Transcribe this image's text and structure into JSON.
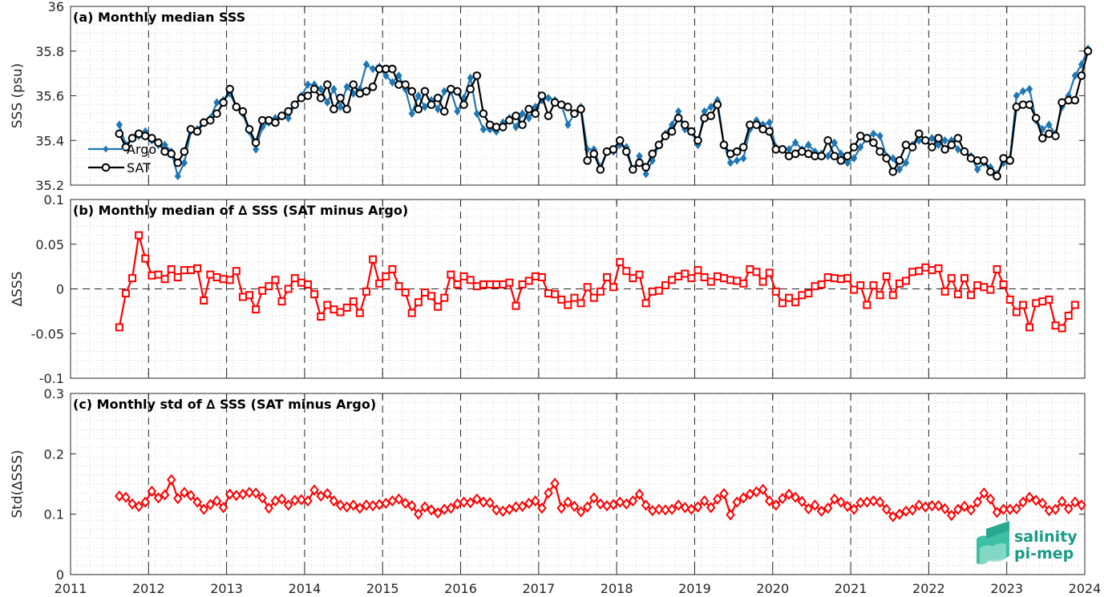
{
  "chart_data": [
    {
      "type": "line",
      "title": "(a) Monthly median SSS",
      "ylabel": "SSS (psu)",
      "xlim": [
        2011,
        2024
      ],
      "ylim": [
        35.2,
        36
      ],
      "yticks": [
        "35.2",
        "35.4",
        "35.6",
        "35.8",
        "36"
      ],
      "grid": true,
      "legend_position": "left",
      "x_start": 2011.625,
      "x_step_months": 1,
      "series": [
        {
          "name": "Argo",
          "color": "#1f77b4",
          "marker": "diamond",
          "values": [
            35.47,
            35.38,
            35.41,
            35.42,
            35.44,
            35.4,
            35.38,
            35.38,
            35.35,
            35.24,
            35.3,
            35.44,
            35.45,
            35.48,
            35.5,
            35.57,
            35.58,
            35.61,
            35.55,
            35.52,
            35.44,
            35.36,
            35.46,
            35.48,
            35.5,
            35.51,
            35.5,
            35.56,
            35.6,
            35.65,
            35.65,
            35.63,
            35.57,
            35.63,
            35.55,
            35.64,
            35.61,
            35.63,
            35.74,
            35.72,
            35.73,
            35.69,
            35.66,
            35.69,
            35.63,
            35.52,
            35.6,
            35.55,
            35.58,
            35.54,
            35.62,
            35.62,
            35.53,
            35.59,
            35.68,
            35.52,
            35.45,
            35.45,
            35.44,
            35.48,
            35.5,
            35.46,
            35.52,
            35.5,
            35.55,
            35.58,
            35.59,
            35.58,
            35.56,
            35.47,
            35.52,
            35.55,
            35.36,
            35.36,
            35.28,
            35.35,
            35.35,
            35.38,
            35.37,
            35.27,
            35.33,
            35.25,
            35.31,
            35.38,
            35.43,
            35.47,
            35.53,
            35.45,
            35.44,
            35.38,
            35.53,
            35.55,
            35.58,
            35.38,
            35.3,
            35.31,
            35.32,
            35.45,
            35.49,
            35.47,
            35.48,
            35.37,
            35.36,
            35.36,
            35.39,
            35.36,
            35.38,
            35.35,
            35.34,
            35.33,
            35.39,
            35.34,
            35.3,
            35.32,
            35.37,
            35.41,
            35.43,
            35.42,
            35.33,
            35.32,
            35.27,
            35.3,
            35.38,
            35.4,
            35.4,
            35.41,
            35.38,
            35.4,
            35.4,
            35.36,
            35.35,
            35.33,
            35.27,
            35.3,
            35.28,
            35.25,
            35.3,
            35.32,
            35.6,
            35.62,
            35.63,
            35.49,
            35.45,
            35.47,
            35.43,
            35.55,
            35.6,
            35.69,
            35.74,
            35.81
          ]
        },
        {
          "name": "SAT",
          "color": "#000000",
          "marker": "circle",
          "values": [
            35.43,
            35.37,
            35.41,
            35.43,
            35.42,
            35.41,
            35.39,
            35.35,
            35.34,
            35.3,
            35.35,
            35.45,
            35.44,
            35.48,
            35.49,
            35.52,
            35.57,
            35.63,
            35.55,
            35.53,
            35.45,
            35.39,
            35.49,
            35.49,
            35.48,
            35.51,
            35.53,
            35.56,
            35.59,
            35.6,
            35.63,
            35.59,
            35.65,
            35.54,
            35.59,
            35.54,
            35.65,
            35.61,
            35.62,
            35.64,
            35.72,
            35.72,
            35.72,
            35.65,
            35.65,
            35.62,
            35.54,
            35.62,
            35.56,
            35.59,
            35.53,
            35.63,
            35.62,
            35.56,
            35.63,
            35.69,
            35.52,
            35.47,
            35.46,
            35.46,
            35.49,
            35.51,
            35.47,
            35.54,
            35.52,
            35.6,
            35.51,
            35.57,
            35.56,
            35.55,
            35.52,
            35.54,
            35.31,
            35.34,
            35.27,
            35.35,
            35.36,
            35.4,
            35.35,
            35.27,
            35.3,
            35.28,
            35.34,
            35.38,
            35.42,
            35.44,
            35.5,
            35.47,
            35.44,
            35.4,
            35.5,
            35.51,
            35.56,
            35.38,
            35.34,
            35.35,
            35.37,
            35.47,
            35.47,
            35.45,
            35.44,
            35.36,
            35.36,
            35.33,
            35.34,
            35.35,
            35.34,
            35.33,
            35.33,
            35.4,
            35.33,
            35.31,
            35.33,
            35.37,
            35.42,
            35.41,
            35.39,
            35.35,
            35.32,
            35.26,
            35.31,
            35.38,
            35.37,
            35.43,
            35.4,
            35.37,
            35.41,
            35.36,
            35.38,
            35.41,
            35.35,
            35.32,
            35.31,
            35.31,
            35.26,
            35.24,
            35.32,
            35.31,
            35.55,
            35.56,
            35.56,
            35.5,
            35.41,
            35.43,
            35.42,
            35.57,
            35.58,
            35.58,
            35.69,
            35.8
          ]
        }
      ]
    },
    {
      "type": "line",
      "title": "(b) Monthly median of ∆ SSS (SAT minus Argo)",
      "ylabel": "∆SSS",
      "xlim": [
        2011,
        2024
      ],
      "ylim": [
        -0.1,
        0.1
      ],
      "yticks": [
        "-0.1",
        "-0.05",
        "0",
        "0.05",
        "0.1"
      ],
      "grid": true,
      "zero_line": true,
      "x_start": 2011.625,
      "x_step_months": 1,
      "series": [
        {
          "name": "",
          "color": "#ff0000",
          "marker": "square",
          "values": [
            -0.043,
            -0.005,
            0.012,
            0.06,
            0.034,
            0.015,
            0.016,
            0.011,
            0.022,
            0.013,
            0.021,
            0.021,
            0.023,
            -0.013,
            0.016,
            0.013,
            0.011,
            0.01,
            0.02,
            -0.009,
            -0.007,
            -0.023,
            -0.002,
            0.003,
            0.01,
            -0.014,
            0.0,
            0.012,
            0.007,
            0.005,
            -0.006,
            -0.031,
            -0.018,
            -0.023,
            -0.026,
            -0.021,
            -0.014,
            -0.027,
            -0.003,
            0.033,
            0.006,
            0.014,
            0.022,
            0.003,
            -0.004,
            -0.027,
            -0.015,
            -0.004,
            -0.008,
            -0.02,
            -0.01,
            0.016,
            0.005,
            0.014,
            0.01,
            0.003,
            0.005,
            0.005,
            0.005,
            0.005,
            0.007,
            -0.019,
            0.005,
            0.009,
            0.014,
            0.013,
            -0.005,
            -0.006,
            -0.012,
            -0.018,
            -0.01,
            -0.016,
            0.002,
            -0.01,
            -0.003,
            0.013,
            0.002,
            0.03,
            0.02,
            0.012,
            0.016,
            -0.016,
            -0.003,
            -0.002,
            0.004,
            0.01,
            0.014,
            0.017,
            0.012,
            0.021,
            0.013,
            0.008,
            0.014,
            0.012,
            0.01,
            0.009,
            0.006,
            0.022,
            0.019,
            0.008,
            0.018,
            -0.003,
            -0.016,
            -0.01,
            -0.015,
            -0.007,
            -0.005,
            0.003,
            0.005,
            0.013,
            0.012,
            0.011,
            0.012,
            -0.001,
            0.004,
            -0.018,
            0.004,
            -0.007,
            0.014,
            -0.007,
            0.006,
            0.009,
            0.019,
            0.02,
            0.024,
            0.021,
            0.023,
            -0.003,
            0.012,
            -0.006,
            0.012,
            -0.007,
            0.004,
            0.002,
            -0.001,
            0.022,
            0.005,
            -0.012,
            -0.026,
            -0.018,
            -0.043,
            -0.016,
            -0.014,
            -0.012,
            -0.041,
            -0.044,
            -0.03,
            -0.018
          ]
        }
      ]
    },
    {
      "type": "line",
      "title": "(c) Monthly std of ∆ SSS (SAT minus Argo)",
      "ylabel": "Std(∆SSS)",
      "xlim": [
        2011,
        2024
      ],
      "ylim": [
        0,
        0.3
      ],
      "yticks": [
        "0",
        "0.1",
        "0.2",
        "0.3"
      ],
      "xticks": [
        "2011",
        "2012",
        "2013",
        "2014",
        "2015",
        "2016",
        "2017",
        "2018",
        "2019",
        "2020",
        "2021",
        "2022",
        "2023",
        "2024"
      ],
      "grid": true,
      "x_start": 2011.625,
      "x_step_months": 1,
      "series": [
        {
          "name": "",
          "color": "#ff0000",
          "marker": "diamond",
          "values": [
            0.13,
            0.128,
            0.117,
            0.113,
            0.12,
            0.138,
            0.127,
            0.132,
            0.157,
            0.126,
            0.136,
            0.131,
            0.12,
            0.108,
            0.116,
            0.122,
            0.111,
            0.133,
            0.131,
            0.133,
            0.136,
            0.135,
            0.127,
            0.11,
            0.122,
            0.125,
            0.115,
            0.123,
            0.124,
            0.122,
            0.14,
            0.13,
            0.134,
            0.122,
            0.115,
            0.112,
            0.115,
            0.11,
            0.115,
            0.114,
            0.116,
            0.118,
            0.122,
            0.125,
            0.118,
            0.114,
            0.1,
            0.112,
            0.107,
            0.102,
            0.108,
            0.11,
            0.117,
            0.12,
            0.119,
            0.125,
            0.12,
            0.119,
            0.107,
            0.105,
            0.108,
            0.112,
            0.113,
            0.118,
            0.122,
            0.11,
            0.135,
            0.151,
            0.11,
            0.12,
            0.113,
            0.104,
            0.112,
            0.127,
            0.117,
            0.114,
            0.116,
            0.12,
            0.117,
            0.122,
            0.133,
            0.115,
            0.106,
            0.108,
            0.107,
            0.108,
            0.115,
            0.111,
            0.108,
            0.112,
            0.122,
            0.111,
            0.125,
            0.134,
            0.099,
            0.12,
            0.127,
            0.133,
            0.137,
            0.141,
            0.122,
            0.115,
            0.126,
            0.133,
            0.128,
            0.121,
            0.109,
            0.115,
            0.105,
            0.11,
            0.125,
            0.12,
            0.113,
            0.108,
            0.119,
            0.12,
            0.122,
            0.12,
            0.108,
            0.096,
            0.1,
            0.105,
            0.107,
            0.115,
            0.112,
            0.114,
            0.114,
            0.109,
            0.098,
            0.108,
            0.113,
            0.107,
            0.12,
            0.135,
            0.125,
            0.103,
            0.108,
            0.108,
            0.109,
            0.12,
            0.128,
            0.123,
            0.118,
            0.106,
            0.108,
            0.121,
            0.109,
            0.12,
            0.115
          ]
        }
      ]
    }
  ],
  "logo": {
    "line1": "salinity",
    "line2": "pi-mep"
  }
}
